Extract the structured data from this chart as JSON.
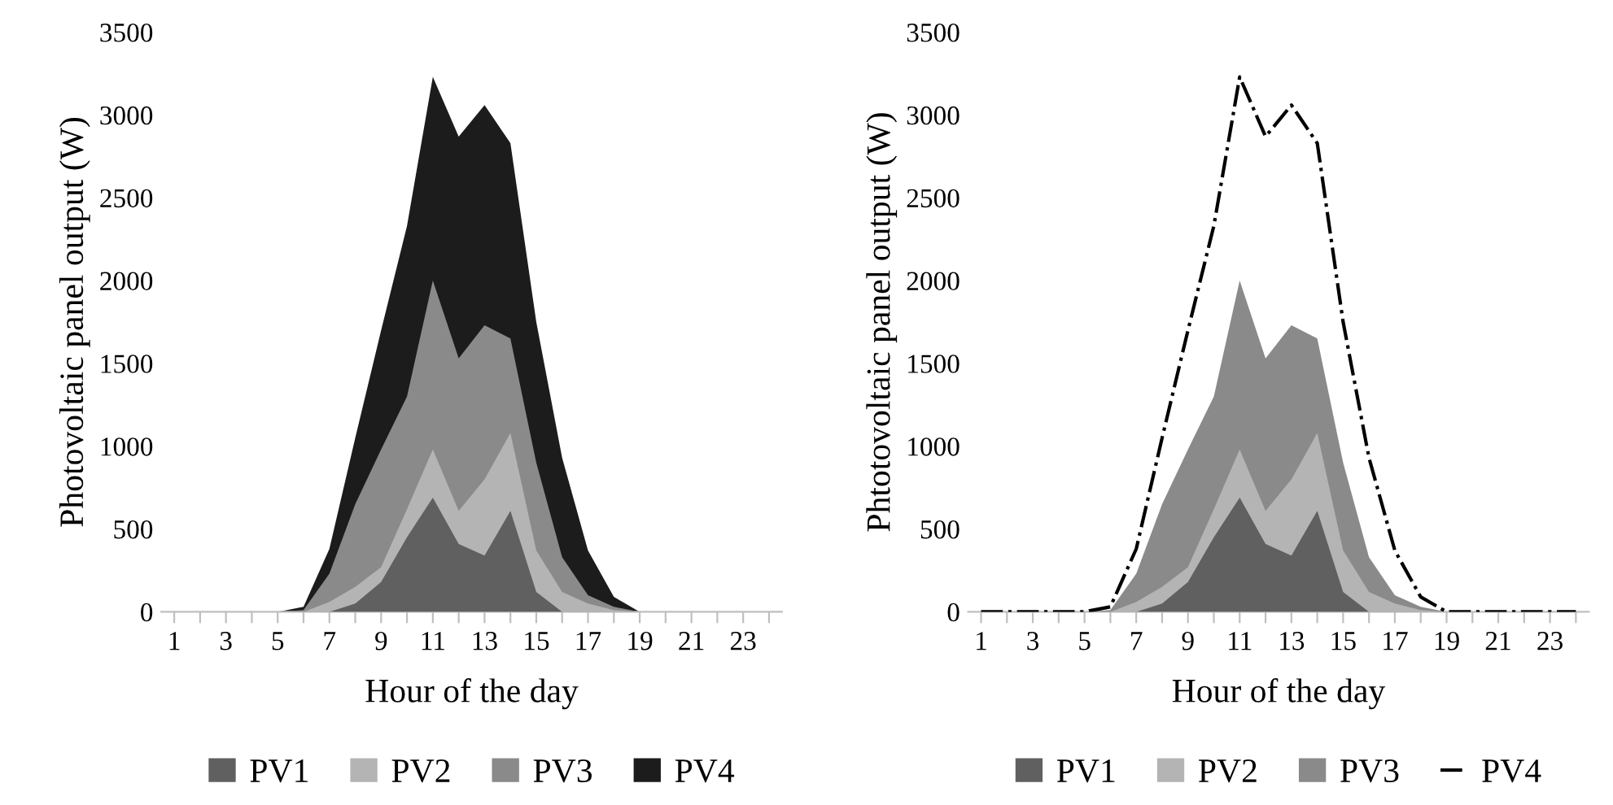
{
  "chart_data": [
    {
      "type": "area",
      "xlabel": "Hour of the day",
      "ylabel": "Photovoltaic panel output (W)",
      "categories": [
        "1",
        null,
        "3",
        null,
        "5",
        null,
        "7",
        null,
        "9",
        null,
        "11",
        null,
        "13",
        null,
        "15",
        null,
        "17",
        null,
        "19",
        null,
        "21",
        null,
        "23",
        null
      ],
      "ylim": [
        0,
        3500
      ],
      "yticks": [
        0,
        500,
        1000,
        1500,
        2000,
        2500,
        3000,
        3500
      ],
      "grid": false,
      "legend": "bottom",
      "series": [
        {
          "name": "PV1",
          "color": "#606060",
          "values": [
            0,
            0,
            0,
            0,
            0,
            0,
            0,
            50,
            180,
            450,
            690,
            410,
            340,
            610,
            120,
            0,
            0,
            0,
            0,
            0,
            0,
            0,
            0,
            0
          ]
        },
        {
          "name": "PV2",
          "color": "#b4b4b4",
          "values": [
            0,
            0,
            0,
            0,
            0,
            0,
            60,
            150,
            270,
            620,
            980,
            610,
            800,
            1080,
            370,
            120,
            50,
            10,
            0,
            0,
            0,
            0,
            0,
            0
          ]
        },
        {
          "name": "PV3",
          "color": "#8a8a8a",
          "values": [
            0,
            0,
            0,
            0,
            0,
            10,
            230,
            650,
            980,
            1300,
            2000,
            1530,
            1730,
            1650,
            900,
            330,
            100,
            30,
            0,
            0,
            0,
            0,
            0,
            0
          ]
        },
        {
          "name": "PV4",
          "color": "#1c1c1c",
          "values": [
            0,
            0,
            0,
            0,
            0,
            30,
            380,
            1050,
            1700,
            2330,
            3230,
            2870,
            3060,
            2830,
            1750,
            930,
            370,
            90,
            0,
            0,
            0,
            0,
            0,
            0
          ]
        }
      ]
    },
    {
      "type": "area",
      "xlabel": "Hour of the day",
      "ylabel": "Phtotovoltaic panel output (W)",
      "categories": [
        "1",
        null,
        "3",
        null,
        "5",
        null,
        "7",
        null,
        "9",
        null,
        "11",
        null,
        "13",
        null,
        "15",
        null,
        "17",
        null,
        "19",
        null,
        "21",
        null,
        "23",
        null
      ],
      "ylim": [
        0,
        3500
      ],
      "yticks": [
        0,
        500,
        1000,
        1500,
        2000,
        2500,
        3000,
        3500
      ],
      "grid": false,
      "legend": "bottom",
      "series": [
        {
          "name": "PV1",
          "color": "#606060",
          "values": [
            0,
            0,
            0,
            0,
            0,
            0,
            0,
            50,
            180,
            450,
            690,
            410,
            340,
            610,
            120,
            0,
            0,
            0,
            0,
            0,
            0,
            0,
            0,
            0
          ]
        },
        {
          "name": "PV2",
          "color": "#b4b4b4",
          "values": [
            0,
            0,
            0,
            0,
            0,
            0,
            60,
            150,
            270,
            620,
            980,
            610,
            800,
            1080,
            370,
            120,
            50,
            10,
            0,
            0,
            0,
            0,
            0,
            0
          ]
        },
        {
          "name": "PV3",
          "color": "#8a8a8a",
          "values": [
            0,
            0,
            0,
            0,
            0,
            10,
            230,
            650,
            980,
            1300,
            2000,
            1530,
            1730,
            1650,
            900,
            330,
            100,
            30,
            0,
            0,
            0,
            0,
            0,
            0
          ]
        },
        {
          "name": "PV4",
          "type": "line",
          "line_style": "dashdot",
          "color": "#000000",
          "values": [
            0,
            0,
            0,
            0,
            0,
            30,
            380,
            1050,
            1700,
            2330,
            3230,
            2870,
            3060,
            2830,
            1750,
            930,
            370,
            90,
            0,
            0,
            0,
            0,
            0,
            0
          ]
        }
      ]
    }
  ]
}
